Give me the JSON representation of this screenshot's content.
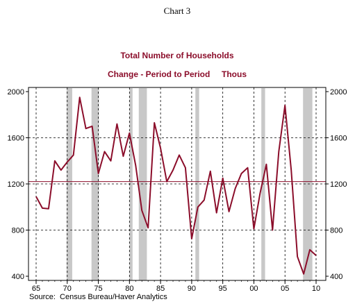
{
  "chart_data": {
    "type": "line",
    "header": "Chart 3",
    "title": "Total Number of Households",
    "subtitle": "Change - Period to Period     Thous",
    "source": "Source:  Census Bureau/Haver Analytics",
    "x_ticks": [
      "65",
      "70",
      "75",
      "80",
      "85",
      "90",
      "95",
      "00",
      "05",
      "10"
    ],
    "y_ticks_left": [
      "2000",
      "1600",
      "1200",
      "800",
      "400"
    ],
    "y_ticks_right": [
      "2000",
      "1600",
      "1200",
      "800",
      "400"
    ],
    "ylim": [
      400,
      2000
    ],
    "xlim": [
      1964,
      2011
    ],
    "grid": true,
    "mean_line": 1220,
    "recessions": [
      [
        1969.9,
        1970.8
      ],
      [
        1973.9,
        1975.1
      ],
      [
        1980.0,
        1980.5
      ],
      [
        1981.5,
        1982.8
      ],
      [
        1990.6,
        1991.2
      ],
      [
        2001.2,
        2001.8
      ],
      [
        2007.9,
        2009.4
      ]
    ],
    "series": [
      {
        "color": "#8b0d2a",
        "x": [
          1965,
          1966,
          1967,
          1968,
          1969,
          1970,
          1971,
          1972,
          1973,
          1974,
          1975,
          1976,
          1977,
          1978,
          1979,
          1980,
          1981,
          1982,
          1983,
          1984,
          1985,
          1986,
          1987,
          1988,
          1989,
          1990,
          1991,
          1992,
          1993,
          1994,
          1995,
          1996,
          1997,
          1998,
          1999,
          2000,
          2001,
          2002,
          2003,
          2004,
          2005,
          2006,
          2007,
          2008,
          2009,
          2010
        ],
        "values": [
          1090,
          990,
          985,
          1400,
          1320,
          1390,
          1450,
          1950,
          1680,
          1700,
          1290,
          1480,
          1400,
          1720,
          1440,
          1640,
          1360,
          970,
          820,
          1730,
          1510,
          1220,
          1320,
          1450,
          1340,
          725,
          1000,
          1060,
          1310,
          950,
          1250,
          960,
          1160,
          1290,
          1340,
          810,
          1120,
          1370,
          800,
          1480,
          1880,
          1320,
          570,
          420,
          630,
          580
        ]
      }
    ],
    "colors": {
      "series": "#8b0d2a",
      "title": "#8b0d2a",
      "recession": "#c8c8c8",
      "mean_line": "#8b0d2a"
    }
  }
}
